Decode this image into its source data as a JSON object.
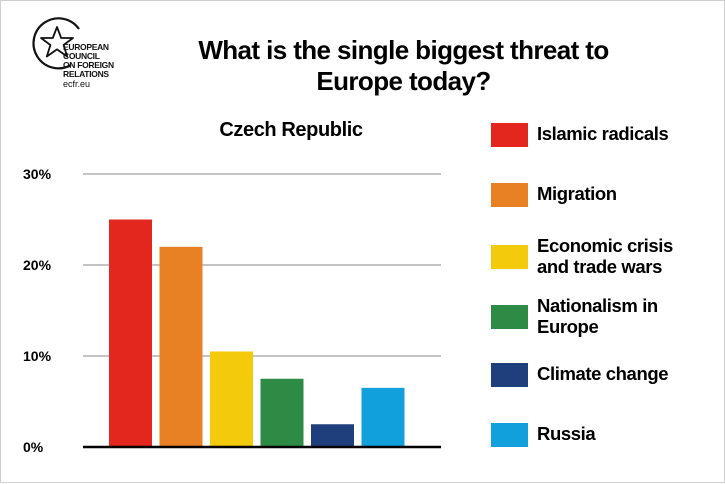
{
  "logo": {
    "lines": [
      "EUROPEAN",
      "COUNCIL",
      "ON FOREIGN",
      "RELATIONS"
    ],
    "domain": "ecfr.eu",
    "icon": "star-circle-icon"
  },
  "title_line1": "What is the single biggest threat to",
  "title_line2": "Europe today?",
  "subtitle": "Czech Republic",
  "chart_data": {
    "type": "bar",
    "title": "What is the single biggest threat to Europe today?",
    "subtitle": "Czech Republic",
    "categories": [
      "Islamic radicals",
      "Migration",
      "Economic crisis and trade wars",
      "Nationalism in Europe",
      "Climate change",
      "Russia"
    ],
    "values": [
      25,
      22,
      10.5,
      7.5,
      2.5,
      6.5
    ],
    "colors": [
      "#e3271f",
      "#e88124",
      "#f3ca0c",
      "#2e8b46",
      "#1f3f7c",
      "#12a0dd"
    ],
    "ylim": [
      0,
      30
    ],
    "yticks": [
      0,
      10,
      20,
      30
    ],
    "ytick_labels": [
      "0%",
      "10%",
      "20%",
      "30%"
    ],
    "grid": true,
    "legend_position": "right",
    "xlabel": "",
    "ylabel": ""
  },
  "legend": [
    {
      "lines": [
        "Islamic radicals"
      ],
      "color": "#e3271f"
    },
    {
      "lines": [
        "Migration"
      ],
      "color": "#e88124"
    },
    {
      "lines": [
        "Economic crisis",
        "and trade wars"
      ],
      "color": "#f3ca0c"
    },
    {
      "lines": [
        "Nationalism in",
        "Europe"
      ],
      "color": "#2e8b46"
    },
    {
      "lines": [
        "Climate change"
      ],
      "color": "#1f3f7c"
    },
    {
      "lines": [
        "Russia"
      ],
      "color": "#12a0dd"
    }
  ]
}
